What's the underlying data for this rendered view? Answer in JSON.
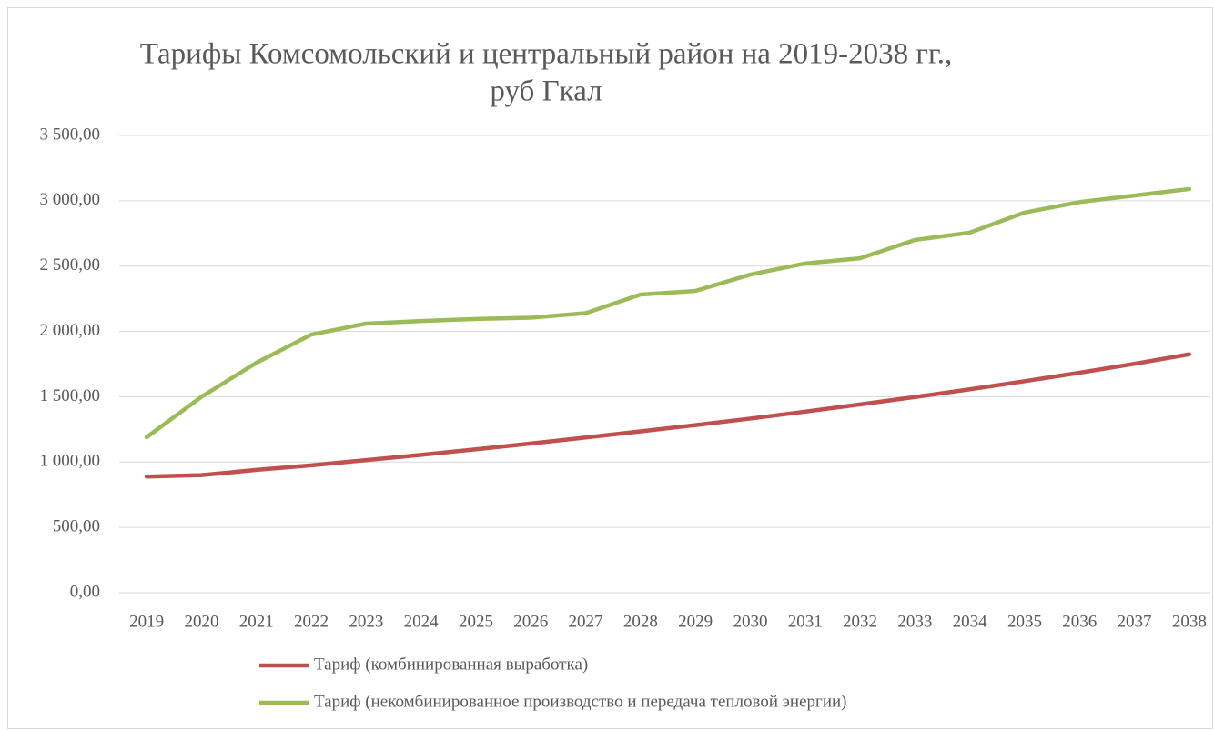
{
  "chart_data": {
    "type": "line",
    "title": [
      "Тарифы Комсомольский и центральный район на 2019-2038 гг.,",
      "руб Гкал"
    ],
    "categories": [
      "2019",
      "2020",
      "2021",
      "2022",
      "2023",
      "2024",
      "2025",
      "2026",
      "2027",
      "2028",
      "2029",
      "2030",
      "2031",
      "2032",
      "2033",
      "2034",
      "2035",
      "2036",
      "2037",
      "2038"
    ],
    "series": [
      {
        "name": "Тариф (комбинированная выработка)",
        "color": "#c0504d",
        "values": [
          889,
          900,
          940,
          975,
          1015,
          1055,
          1098,
          1142,
          1188,
          1235,
          1283,
          1333,
          1386,
          1441,
          1498,
          1557,
          1619,
          1684,
          1752,
          1825
        ]
      },
      {
        "name": "Тариф (некомбинированное производство и передача тепловой энергии)",
        "color": "#9bbb59",
        "values": [
          1190,
          1500,
          1760,
          1976,
          2060,
          2080,
          2095,
          2105,
          2140,
          2282,
          2310,
          2435,
          2520,
          2560,
          2700,
          2756,
          2910,
          2990,
          3040,
          3090
        ]
      }
    ],
    "ylim": [
      0,
      3500
    ],
    "yticks": [
      {
        "value": 0,
        "label": "0,00"
      },
      {
        "value": 500,
        "label": "500,00"
      },
      {
        "value": 1000,
        "label": "1 000,00"
      },
      {
        "value": 1500,
        "label": "1 500,00"
      },
      {
        "value": 2000,
        "label": "2 000,00"
      },
      {
        "value": 2500,
        "label": "2 500,00"
      },
      {
        "value": 3000,
        "label": "3 000,00"
      },
      {
        "value": 3500,
        "label": "3 500,00"
      }
    ],
    "grid": true,
    "legend": "bottom"
  }
}
